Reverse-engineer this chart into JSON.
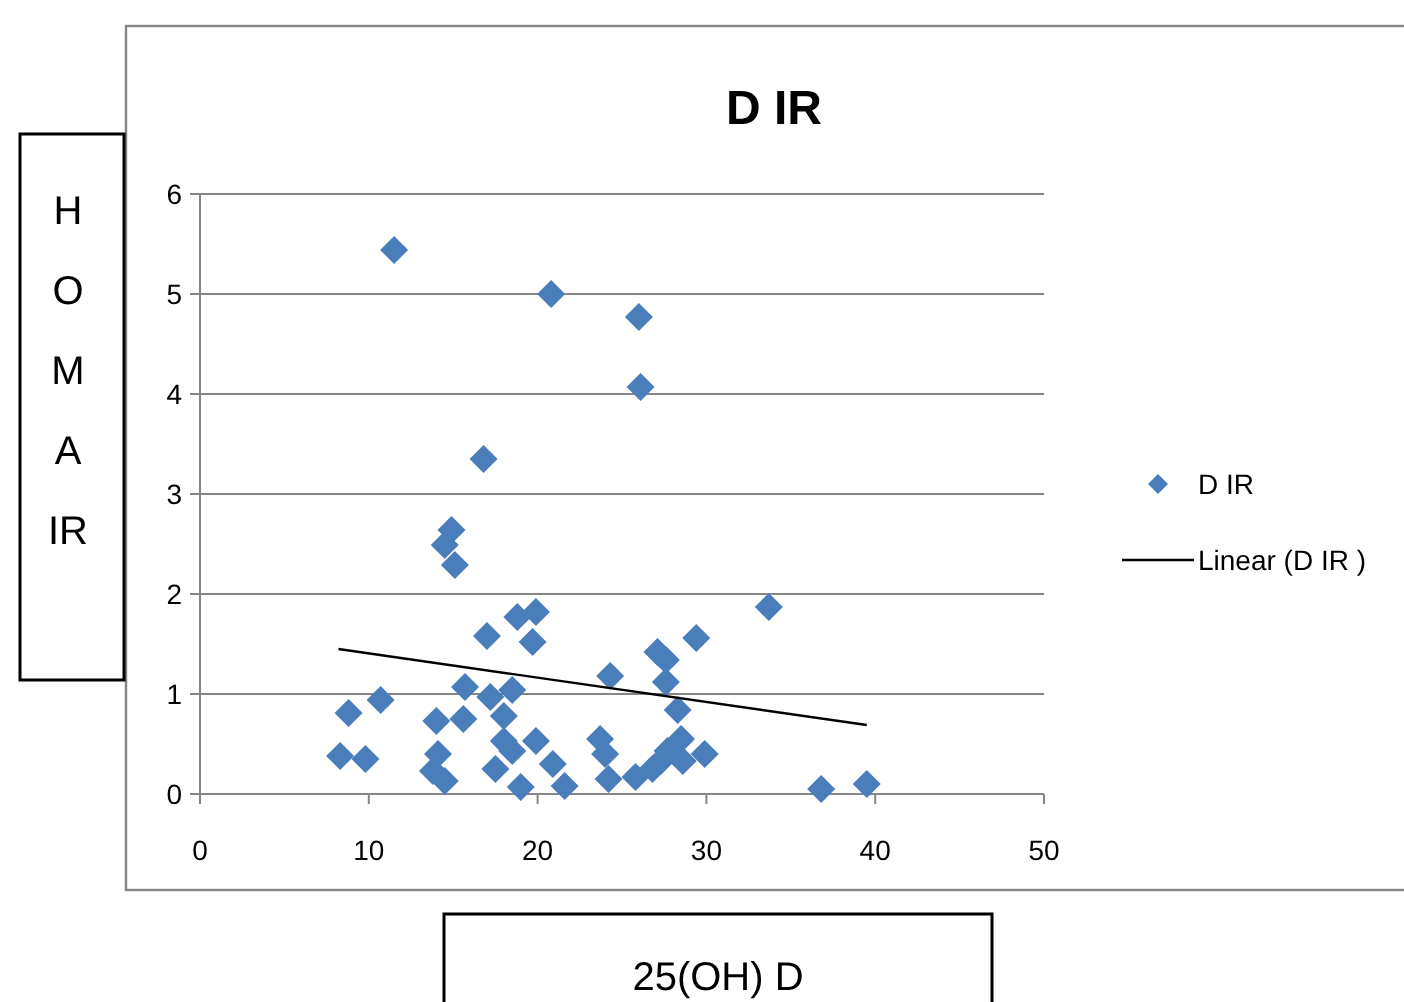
{
  "chart_data": {
    "type": "scatter",
    "title": "D IR",
    "xlabel": "25(OH) D",
    "ylabel": "HOMA IR",
    "xlim": [
      0,
      50
    ],
    "xticks": [
      0,
      10,
      20,
      30,
      40,
      50
    ],
    "ylim": [
      0,
      6
    ],
    "yticks": [
      0,
      1,
      2,
      3,
      4,
      5,
      6
    ],
    "grid": "y",
    "legend": "right",
    "marker": "diamond",
    "series": [
      {
        "name": "D IR",
        "color": "#4a7ebb",
        "type": "scatter",
        "x": [
          11.5,
          20.8,
          16.8,
          14.9,
          14.5,
          15.1,
          18.8,
          19.9,
          19.7,
          17.0,
          8.8,
          10.7,
          8.3,
          9.8,
          14.0,
          15.6,
          15.7,
          17.2,
          18.5,
          18.0,
          18.0,
          18.5,
          17.5,
          14.1,
          13.8,
          14.5,
          19.9,
          20.9,
          19.0,
          21.6,
          24.3,
          26.0,
          26.1,
          23.7,
          24.0,
          24.2,
          25.8,
          26.8,
          27.3,
          27.7,
          28.5,
          28.6,
          29.9,
          28.3,
          27.1,
          27.6,
          27.6,
          29.4,
          33.7,
          36.8,
          39.5
        ],
        "values": [
          5.44,
          5.0,
          3.35,
          2.64,
          2.49,
          2.29,
          1.77,
          1.82,
          1.52,
          1.58,
          0.81,
          0.94,
          0.38,
          0.35,
          0.73,
          0.75,
          1.07,
          0.97,
          1.04,
          0.78,
          0.53,
          0.43,
          0.25,
          0.4,
          0.23,
          0.13,
          0.53,
          0.3,
          0.07,
          0.08,
          1.18,
          4.77,
          4.07,
          0.55,
          0.4,
          0.15,
          0.17,
          0.25,
          0.33,
          0.43,
          0.55,
          0.33,
          0.4,
          0.84,
          1.42,
          1.34,
          1.12,
          1.56,
          1.87,
          0.05,
          0.1
        ]
      },
      {
        "name": "Linear (D IR )",
        "color": "#000000",
        "type": "line",
        "marker": "none",
        "x": [
          8.2,
          39.5
        ],
        "values": [
          1.45,
          0.69
        ]
      }
    ]
  }
}
